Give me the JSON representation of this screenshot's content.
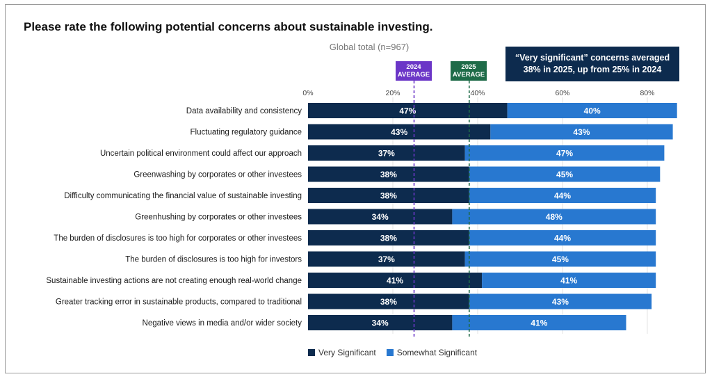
{
  "chart_data": {
    "type": "bar",
    "orientation": "horizontal",
    "stacked": true,
    "title": "Please rate the following potential concerns about sustainable investing.",
    "subtitle": "Global total (n=967)",
    "callout": {
      "line1": "“Very significant” concerns averaged",
      "line2": "38% in 2025, up from 25% in 2024"
    },
    "reference_lines": [
      {
        "name": "2024 AVERAGE",
        "line1": "2024",
        "line2": "AVERAGE",
        "value": 25,
        "color": "#6b36c7"
      },
      {
        "name": "2025 AVERAGE",
        "line1": "2025",
        "line2": "AVERAGE",
        "value": 38,
        "color": "#1e6b48"
      }
    ],
    "categories": [
      "Data availability and consistency",
      "Fluctuating regulatory guidance",
      "Uncertain political environment could affect our approach",
      "Greenwashing by corporates or other investees",
      "Difficulty communicating the financial value of sustainable investing",
      "Greenhushing by corporates or other investees",
      "The burden of disclosures is too high for corporates or other investees",
      "The burden of disclosures is too high for investors",
      "Sustainable investing actions are not creating enough real-world change",
      "Greater tracking error in sustainable products, compared to traditional",
      "Negative views in media and/or wider society"
    ],
    "series": [
      {
        "name": "Very Significant",
        "color": "#0d2b4e",
        "values": [
          47,
          43,
          37,
          38,
          38,
          34,
          38,
          37,
          41,
          38,
          34
        ]
      },
      {
        "name": "Somewhat Significant",
        "color": "#2878d0",
        "values": [
          40,
          43,
          47,
          45,
          44,
          48,
          44,
          45,
          41,
          43,
          41
        ]
      }
    ],
    "xlim": [
      0,
      85
    ],
    "xticks": [
      0,
      20,
      40,
      60,
      80
    ],
    "xtick_labels": [
      "0%",
      "20%",
      "40%",
      "60%",
      "80%"
    ],
    "legend_position": "bottom",
    "grid": true
  }
}
